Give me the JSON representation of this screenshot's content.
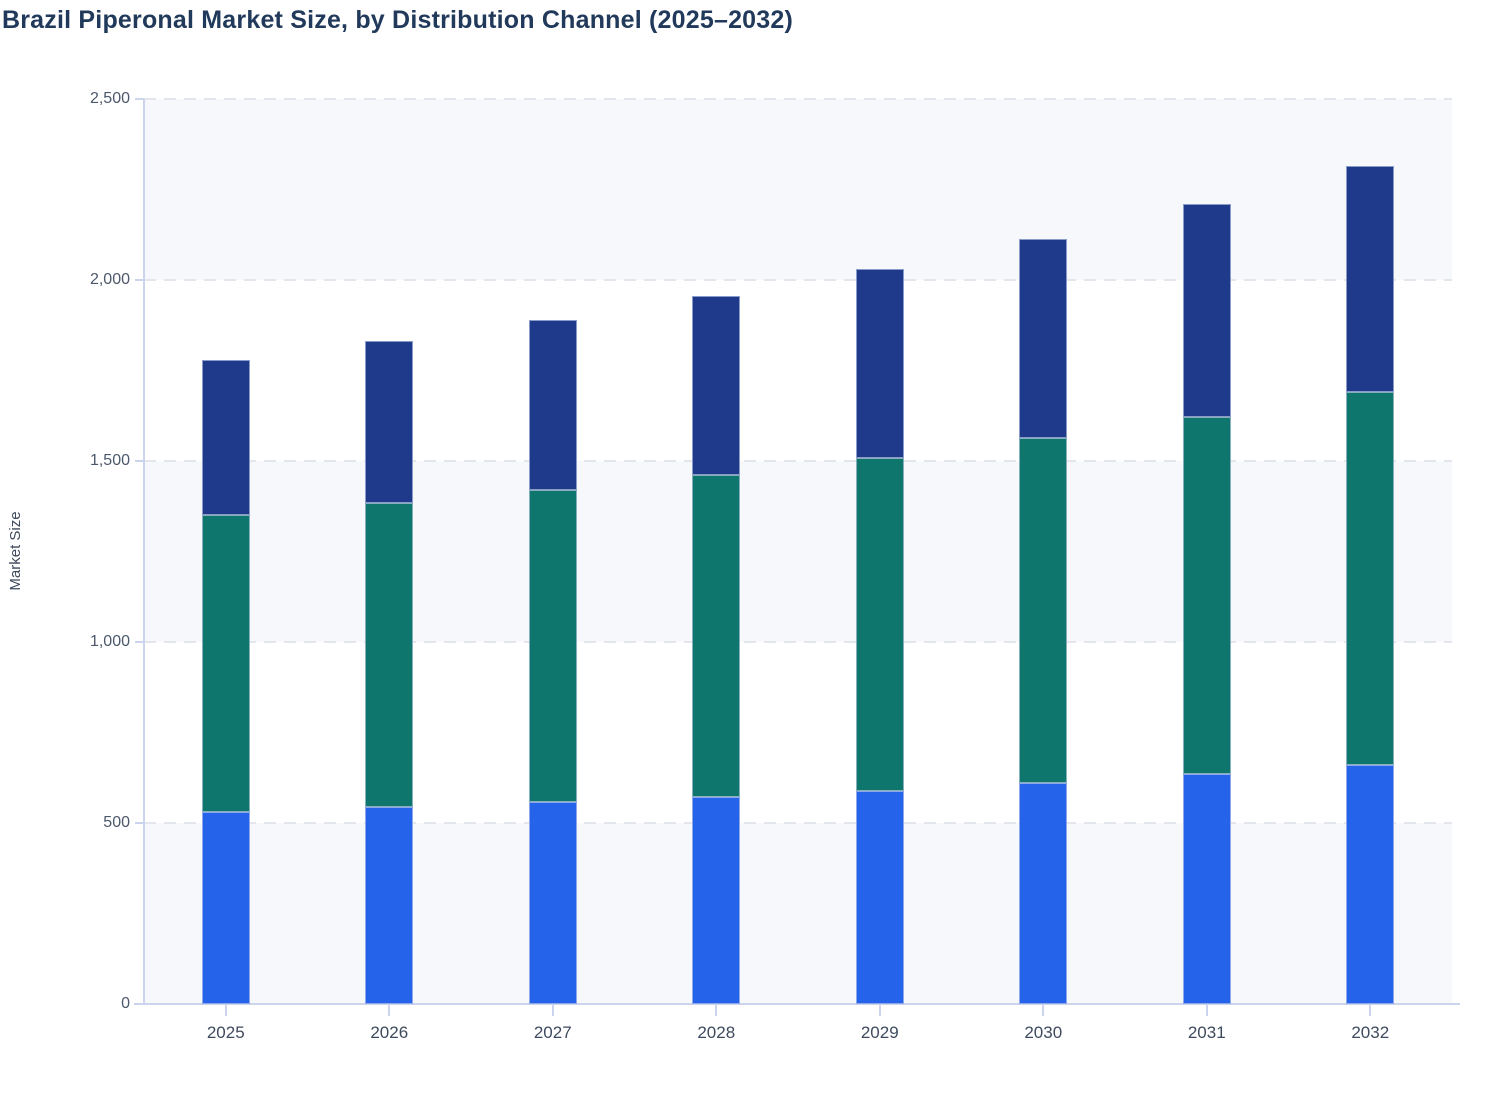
{
  "title": "Brazil Piperonal Market Size, by Distribution Channel (2025–2032)",
  "y_axis": {
    "label": "Market Size",
    "tick_labels": [
      "0",
      "500",
      "1,000",
      "1,500",
      "2,000",
      "2,500"
    ],
    "tick_values": [
      0,
      500,
      1000,
      1500,
      2000,
      2500
    ]
  },
  "x_axis": {
    "tick_labels": [
      "2025",
      "2026",
      "2027",
      "2028",
      "2029",
      "2030",
      "2031",
      "2032"
    ]
  },
  "colors": {
    "series_blue": "#2563eb",
    "series_teal": "#0f766e",
    "series_navy": "#1f3a8a",
    "band_fill": "#f7f8fb",
    "gridline": "#e3e6ed",
    "axis_line": "#ccd4ed",
    "title_text": "#21395a",
    "tick_text": "#4c586b"
  },
  "chart_data": {
    "type": "bar",
    "stacked": true,
    "title": "Brazil Piperonal Market Size, by Distribution Channel (2025–2032)",
    "xlabel": "",
    "ylabel": "Market Size",
    "ylim": [
      0,
      2500
    ],
    "y_tick_step": 500,
    "grid": true,
    "grid_style": "dashed",
    "background_bands": "alternating",
    "legend": "none (not shown in image)",
    "categories": [
      "2025",
      "2026",
      "2027",
      "2028",
      "2029",
      "2030",
      "2031",
      "2032"
    ],
    "series": [
      {
        "name": "bottom-segment-blue",
        "color": "#2563eb",
        "values": [
          530,
          544,
          558,
          572,
          588,
          611,
          635,
          660
        ]
      },
      {
        "name": "middle-segment-teal",
        "color": "#0f766e",
        "values": [
          821,
          840,
          862,
          889,
          920,
          953,
          987,
          1031
        ]
      },
      {
        "name": "top-segment-navy",
        "color": "#1f3a8a",
        "values": [
          428,
          448,
          469,
          495,
          522,
          549,
          588,
          624
        ]
      }
    ],
    "totals": [
      1779,
      1832,
      1889,
      1956,
      2030,
      2113,
      2210,
      2315
    ]
  }
}
